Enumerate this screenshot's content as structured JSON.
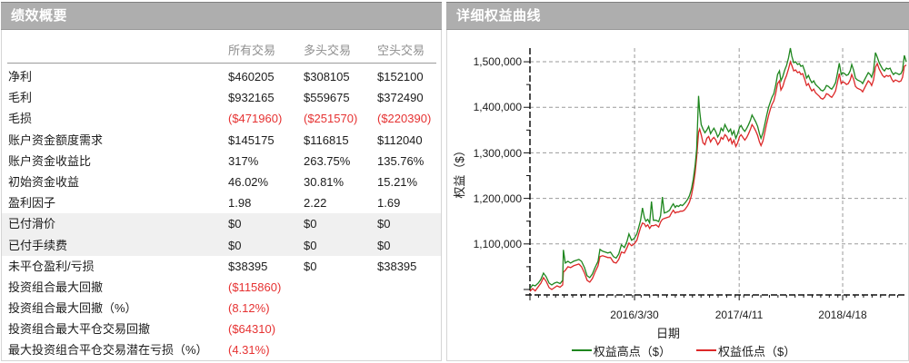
{
  "left_panel": {
    "title": "绩效概要",
    "columns": [
      "所有交易",
      "多头交易",
      "空头交易"
    ],
    "rows": [
      {
        "label": "净利",
        "values": [
          "$460205",
          "$308105",
          "$152100"
        ],
        "shaded": false
      },
      {
        "label": "毛利",
        "values": [
          "$932165",
          "$559675",
          "$372490"
        ],
        "shaded": false
      },
      {
        "label": "毛损",
        "values": [
          "($471960)",
          "($251570)",
          "($220390)"
        ],
        "shaded": false
      },
      {
        "label": "账户资金额度需求",
        "values": [
          "$145175",
          "$116815",
          "$112040"
        ],
        "shaded": false
      },
      {
        "label": "账户资金收益比",
        "values": [
          "317%",
          "263.75%",
          "135.76%"
        ],
        "shaded": false
      },
      {
        "label": "初始资金收益",
        "values": [
          "46.02%",
          "30.81%",
          "15.21%"
        ],
        "shaded": false
      },
      {
        "label": "盈利因子",
        "values": [
          "1.98",
          "2.22",
          "1.69"
        ],
        "shaded": false
      },
      {
        "label": "已付滑价",
        "values": [
          "$0",
          "$0",
          "$0"
        ],
        "shaded": true
      },
      {
        "label": "已付手续费",
        "values": [
          "$0",
          "$0",
          "$0"
        ],
        "shaded": true
      },
      {
        "label": "未平仓盈利/亏损",
        "values": [
          "$38395",
          "$0",
          "$38395"
        ],
        "shaded": false
      },
      {
        "label": "投资组合最大回撤",
        "values": [
          "($115860)",
          "",
          ""
        ],
        "shaded": false
      },
      {
        "label": "投资组合最大回撤（%）",
        "values": [
          "(8.12%)",
          "",
          ""
        ],
        "shaded": false
      },
      {
        "label": "投资组合最大平仓交易回撤",
        "values": [
          "($64310)",
          "",
          ""
        ],
        "shaded": false
      },
      {
        "label": "最大投资组合平仓交易潜在亏损（%）",
        "values": [
          "(4.31%)",
          "",
          ""
        ],
        "shaded": false
      }
    ]
  },
  "right_panel": {
    "title": "详细权益曲线"
  },
  "chart_data": {
    "type": "line",
    "title": "详细权益曲线",
    "xlabel": "日期",
    "ylabel": "权益（$）",
    "ylim": [
      988000,
      1530000
    ],
    "grid": "dashed",
    "legend_position": "bottom",
    "y_ticks": [
      {
        "value": 1500000,
        "label": "1,500,000"
      },
      {
        "value": 1400000,
        "label": "1,400,000"
      },
      {
        "value": 1300000,
        "label": "1,300,000"
      },
      {
        "value": 1200000,
        "label": "1,200,000"
      },
      {
        "value": 1100000,
        "label": "1,100,000"
      }
    ],
    "x_ticks": [
      {
        "x": 0.278,
        "label": "2016/3/30"
      },
      {
        "x": 0.556,
        "label": "2017/4/11"
      },
      {
        "x": 0.831,
        "label": "2018/4/18"
      }
    ],
    "legend": [
      {
        "name": "权益高点（$）",
        "color": "#1e861e"
      },
      {
        "name": "权益低点（$）",
        "color": "#dc2828"
      }
    ],
    "points_format": [
      "x_fraction",
      "equity_high_usd",
      "equity_low_usd"
    ],
    "points": [
      [
        0.0,
        1002000,
        996000
      ],
      [
        0.007,
        1010000,
        1002000
      ],
      [
        0.014,
        1008000,
        997000
      ],
      [
        0.022,
        1014000,
        1006000
      ],
      [
        0.029,
        1022000,
        1014000
      ],
      [
        0.036,
        1036000,
        1026000
      ],
      [
        0.043,
        1028000,
        1018000
      ],
      [
        0.051,
        1014000,
        1004000
      ],
      [
        0.058,
        1010000,
        1000000
      ],
      [
        0.065,
        1014000,
        1004000
      ],
      [
        0.072,
        1016000,
        1008000
      ],
      [
        0.08,
        1013000,
        1005000
      ],
      [
        0.087,
        1020000,
        1010000
      ],
      [
        0.089,
        1087000,
        1038000
      ],
      [
        0.094,
        1058000,
        1042000
      ],
      [
        0.101,
        1062000,
        1050000
      ],
      [
        0.108,
        1058000,
        1048000
      ],
      [
        0.116,
        1062000,
        1052000
      ],
      [
        0.123,
        1064000,
        1054000
      ],
      [
        0.13,
        1066000,
        1056000
      ],
      [
        0.137,
        1062000,
        1050000
      ],
      [
        0.145,
        1048000,
        1036000
      ],
      [
        0.152,
        1030000,
        1020000
      ],
      [
        0.159,
        1026000,
        1016000
      ],
      [
        0.166,
        1034000,
        1024000
      ],
      [
        0.173,
        1048000,
        1038000
      ],
      [
        0.181,
        1062000,
        1052000
      ],
      [
        0.186,
        1088000,
        1072000
      ],
      [
        0.193,
        1084000,
        1074000
      ],
      [
        0.2,
        1082000,
        1072000
      ],
      [
        0.207,
        1080000,
        1070000
      ],
      [
        0.214,
        1082000,
        1070000
      ],
      [
        0.222,
        1072000,
        1060000
      ],
      [
        0.229,
        1069000,
        1058000
      ],
      [
        0.236,
        1078000,
        1066000
      ],
      [
        0.243,
        1098000,
        1082000
      ],
      [
        0.251,
        1092000,
        1080000
      ],
      [
        0.258,
        1106000,
        1092000
      ],
      [
        0.263,
        1122000,
        1102000
      ],
      [
        0.27,
        1108000,
        1096000
      ],
      [
        0.277,
        1112000,
        1100000
      ],
      [
        0.284,
        1122000,
        1108000
      ],
      [
        0.289,
        1136000,
        1122000
      ],
      [
        0.294,
        1152000,
        1136000
      ],
      [
        0.299,
        1179000,
        1146000
      ],
      [
        0.304,
        1158000,
        1144000
      ],
      [
        0.308,
        1150000,
        1138000
      ],
      [
        0.313,
        1154000,
        1142000
      ],
      [
        0.318,
        1146000,
        1134000
      ],
      [
        0.323,
        1193000,
        1140000
      ],
      [
        0.328,
        1152000,
        1140000
      ],
      [
        0.335,
        1152000,
        1142000
      ],
      [
        0.342,
        1149000,
        1137000
      ],
      [
        0.347,
        1162000,
        1148000
      ],
      [
        0.352,
        1203000,
        1154000
      ],
      [
        0.357,
        1168000,
        1156000
      ],
      [
        0.364,
        1170000,
        1158000
      ],
      [
        0.371,
        1174000,
        1160000
      ],
      [
        0.376,
        1182000,
        1168000
      ],
      [
        0.381,
        1188000,
        1174000
      ],
      [
        0.386,
        1180000,
        1168000
      ],
      [
        0.39,
        1184000,
        1170000
      ],
      [
        0.395,
        1182000,
        1170000
      ],
      [
        0.4,
        1186000,
        1172000
      ],
      [
        0.405,
        1184000,
        1172000
      ],
      [
        0.41,
        1188000,
        1174000
      ],
      [
        0.414,
        1192000,
        1178000
      ],
      [
        0.419,
        1198000,
        1184000
      ],
      [
        0.424,
        1206000,
        1192000
      ],
      [
        0.429,
        1220000,
        1206000
      ],
      [
        0.434,
        1242000,
        1228000
      ],
      [
        0.439,
        1272000,
        1256000
      ],
      [
        0.443,
        1308000,
        1290000
      ],
      [
        0.448,
        1425000,
        1345000
      ],
      [
        0.451,
        1392000,
        1352000
      ],
      [
        0.455,
        1362000,
        1340000
      ],
      [
        0.46,
        1352000,
        1322000
      ],
      [
        0.465,
        1344000,
        1318000
      ],
      [
        0.47,
        1350000,
        1332000
      ],
      [
        0.475,
        1358000,
        1336000
      ],
      [
        0.48,
        1342000,
        1324000
      ],
      [
        0.484,
        1348000,
        1330000
      ],
      [
        0.489,
        1354000,
        1334000
      ],
      [
        0.494,
        1346000,
        1328000
      ],
      [
        0.499,
        1335000,
        1318000
      ],
      [
        0.504,
        1342000,
        1324000
      ],
      [
        0.508,
        1354000,
        1334000
      ],
      [
        0.513,
        1348000,
        1330000
      ],
      [
        0.518,
        1362000,
        1340000
      ],
      [
        0.523,
        1354000,
        1336000
      ],
      [
        0.528,
        1346000,
        1326000
      ],
      [
        0.533,
        1352000,
        1332000
      ],
      [
        0.537,
        1340000,
        1320000
      ],
      [
        0.542,
        1348000,
        1328000
      ],
      [
        0.547,
        1332000,
        1314000
      ],
      [
        0.552,
        1342000,
        1322000
      ],
      [
        0.557,
        1356000,
        1336000
      ],
      [
        0.561,
        1360000,
        1340000
      ],
      [
        0.566,
        1352000,
        1334000
      ],
      [
        0.571,
        1347000,
        1328000
      ],
      [
        0.576,
        1354000,
        1334000
      ],
      [
        0.581,
        1362000,
        1342000
      ],
      [
        0.586,
        1372000,
        1352000
      ],
      [
        0.59,
        1383000,
        1362000
      ],
      [
        0.595,
        1376000,
        1356000
      ],
      [
        0.6,
        1368000,
        1348000
      ],
      [
        0.605,
        1358000,
        1338000
      ],
      [
        0.61,
        1342000,
        1324000
      ],
      [
        0.614,
        1332000,
        1316000
      ],
      [
        0.619,
        1344000,
        1326000
      ],
      [
        0.624,
        1362000,
        1344000
      ],
      [
        0.629,
        1382000,
        1364000
      ],
      [
        0.634,
        1400000,
        1382000
      ],
      [
        0.639,
        1412000,
        1396000
      ],
      [
        0.643,
        1422000,
        1406000
      ],
      [
        0.648,
        1430000,
        1414000
      ],
      [
        0.653,
        1448000,
        1430000
      ],
      [
        0.658,
        1472000,
        1452000
      ],
      [
        0.663,
        1480000,
        1458000
      ],
      [
        0.667,
        1458000,
        1438000
      ],
      [
        0.672,
        1468000,
        1446000
      ],
      [
        0.677,
        1482000,
        1460000
      ],
      [
        0.682,
        1492000,
        1470000
      ],
      [
        0.687,
        1508000,
        1484000
      ],
      [
        0.692,
        1530000,
        1500000
      ],
      [
        0.696,
        1512000,
        1492000
      ],
      [
        0.701,
        1498000,
        1480000
      ],
      [
        0.706,
        1500000,
        1482000
      ],
      [
        0.711,
        1494000,
        1476000
      ],
      [
        0.716,
        1496000,
        1478000
      ],
      [
        0.72,
        1490000,
        1472000
      ],
      [
        0.725,
        1492000,
        1474000
      ],
      [
        0.73,
        1480000,
        1462000
      ],
      [
        0.735,
        1464000,
        1448000
      ],
      [
        0.74,
        1470000,
        1452000
      ],
      [
        0.745,
        1460000,
        1442000
      ],
      [
        0.749,
        1454000,
        1436000
      ],
      [
        0.754,
        1458000,
        1440000
      ],
      [
        0.759,
        1450000,
        1432000
      ],
      [
        0.764,
        1446000,
        1428000
      ],
      [
        0.769,
        1442000,
        1424000
      ],
      [
        0.773,
        1438000,
        1420000
      ],
      [
        0.778,
        1436000,
        1418000
      ],
      [
        0.783,
        1440000,
        1422000
      ],
      [
        0.788,
        1448000,
        1430000
      ],
      [
        0.793,
        1446000,
        1428000
      ],
      [
        0.798,
        1442000,
        1424000
      ],
      [
        0.802,
        1440000,
        1422000
      ],
      [
        0.807,
        1446000,
        1428000
      ],
      [
        0.812,
        1454000,
        1436000
      ],
      [
        0.817,
        1474000,
        1454000
      ],
      [
        0.822,
        1497000,
        1474000
      ],
      [
        0.827,
        1472000,
        1452000
      ],
      [
        0.831,
        1476000,
        1456000
      ],
      [
        0.836,
        1474000,
        1454000
      ],
      [
        0.841,
        1470000,
        1450000
      ],
      [
        0.846,
        1472000,
        1452000
      ],
      [
        0.851,
        1480000,
        1460000
      ],
      [
        0.855,
        1494000,
        1472000
      ],
      [
        0.86,
        1482000,
        1462000
      ],
      [
        0.865,
        1464000,
        1446000
      ],
      [
        0.87,
        1460000,
        1442000
      ],
      [
        0.875,
        1458000,
        1440000
      ],
      [
        0.88,
        1456000,
        1438000
      ],
      [
        0.884,
        1452000,
        1434000
      ],
      [
        0.889,
        1460000,
        1442000
      ],
      [
        0.894,
        1468000,
        1450000
      ],
      [
        0.899,
        1476000,
        1458000
      ],
      [
        0.904,
        1472000,
        1454000
      ],
      [
        0.908,
        1466000,
        1448000
      ],
      [
        0.913,
        1480000,
        1460000
      ],
      [
        0.918,
        1520000,
        1488000
      ],
      [
        0.923,
        1510000,
        1496000
      ],
      [
        0.928,
        1498000,
        1484000
      ],
      [
        0.933,
        1490000,
        1476000
      ],
      [
        0.937,
        1484000,
        1470000
      ],
      [
        0.942,
        1480000,
        1466000
      ],
      [
        0.947,
        1486000,
        1470000
      ],
      [
        0.952,
        1484000,
        1468000
      ],
      [
        0.957,
        1486000,
        1470000
      ],
      [
        0.961,
        1478000,
        1462000
      ],
      [
        0.966,
        1472000,
        1456000
      ],
      [
        0.971,
        1476000,
        1460000
      ],
      [
        0.976,
        1474000,
        1458000
      ],
      [
        0.981,
        1472000,
        1456000
      ],
      [
        0.986,
        1474000,
        1458000
      ],
      [
        0.99,
        1482000,
        1466000
      ],
      [
        0.995,
        1514000,
        1490000
      ],
      [
        1.0,
        1500000,
        1493000
      ]
    ]
  },
  "colors": {
    "header_bg": "#aeaeae",
    "header_text": "#ffffff",
    "negative_value": "#e63232",
    "shaded_row": "#f0f0f0",
    "gridline": "#9a9a9a",
    "equity_high_line": "#1e861e",
    "equity_low_line": "#dc2828"
  }
}
